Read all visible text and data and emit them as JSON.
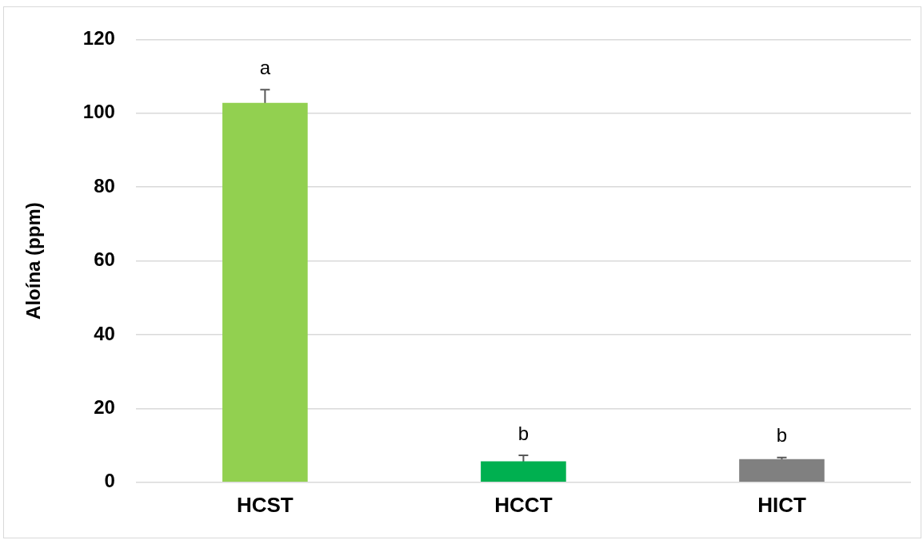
{
  "chart_data": {
    "type": "bar",
    "ylabel": "Aloína (ppm)",
    "categories": [
      "HCST",
      "HCCT",
      "HICT"
    ],
    "values": [
      102.8,
      5.7,
      6.3
    ],
    "colors": [
      "#92d050",
      "#00b050",
      "#808080"
    ],
    "errors": [
      3.6,
      1.6,
      0.4
    ],
    "ylim": [
      0,
      120
    ],
    "yticks": [
      0,
      20,
      40,
      60,
      80,
      100,
      120
    ],
    "grid": "y",
    "legend": false,
    "annotations": [
      "a",
      "b",
      "b"
    ]
  }
}
